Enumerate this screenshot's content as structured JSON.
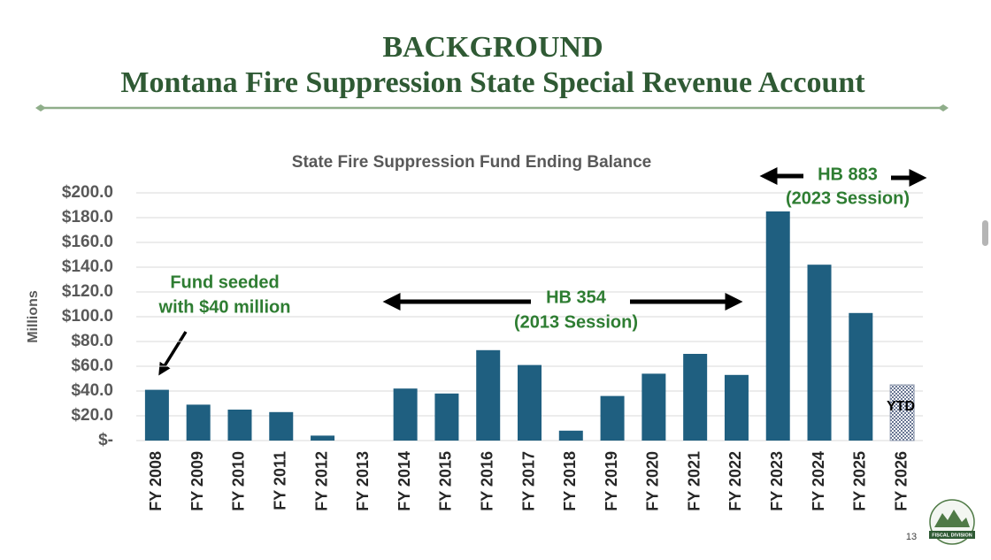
{
  "header": {
    "title": "BACKGROUND",
    "subtitle": "Montana Fire Suppression State Special Revenue Account"
  },
  "chart_data": {
    "type": "bar",
    "title": "State Fire Suppression Fund Ending Balance",
    "y_label": "Millions",
    "categories": [
      "FY 2008",
      "FY 2009",
      "FY 2010",
      "FY 2011",
      "FY 2012",
      "FY 2013",
      "FY 2014",
      "FY 2015",
      "FY 2016",
      "FY 2017",
      "FY 2018",
      "FY 2019",
      "FY 2020",
      "FY 2021",
      "FY 2022",
      "FY 2023",
      "FY 2024",
      "FY 2025",
      "FY 2026"
    ],
    "values": [
      41,
      29,
      25,
      23,
      4,
      0,
      42,
      38,
      73,
      61,
      8,
      36,
      54,
      70,
      53,
      185,
      142,
      103,
      45
    ],
    "color": "#1f5f80",
    "colors": [
      "#1f5f80",
      "#1f5f80",
      "#1f5f80",
      "#1f5f80",
      "#1f5f80",
      "#1f5f80",
      "#1f5f80",
      "#1f5f80",
      "#1f5f80",
      "#1f5f80",
      "#1f5f80",
      "#1f5f80",
      "#1f5f80",
      "#1f5f80",
      "#1f5f80",
      "#1f5f80",
      "#1f5f80",
      "#1f5f80",
      "#8e98ae"
    ],
    "ylim": [
      0,
      200
    ],
    "yticks": [
      {
        "value": 0,
        "label": "$-"
      },
      {
        "value": 20,
        "label": "$20.0"
      },
      {
        "value": 40,
        "label": "$40.0"
      },
      {
        "value": 60,
        "label": "$60.0"
      },
      {
        "value": 80,
        "label": "$80.0"
      },
      {
        "value": 100,
        "label": "$100.0"
      },
      {
        "value": 120,
        "label": "$120.0"
      },
      {
        "value": 140,
        "label": "$140.0"
      },
      {
        "value": 160,
        "label": "$160.0"
      },
      {
        "value": 180,
        "label": "$180.0"
      },
      {
        "value": 200,
        "label": "$200.0"
      }
    ],
    "grid": true,
    "annotations": [
      {
        "lines": [
          "Fund seeded",
          "with $40 million"
        ]
      },
      {
        "lines": [
          "HB 354",
          "(2013 Session)"
        ]
      },
      {
        "lines": [
          "HB 883",
          "(2023 Session)"
        ]
      },
      {
        "lines": [
          "YTD"
        ]
      }
    ]
  },
  "footer": {
    "page": "13",
    "logo": "FISCAL DIVISION"
  }
}
